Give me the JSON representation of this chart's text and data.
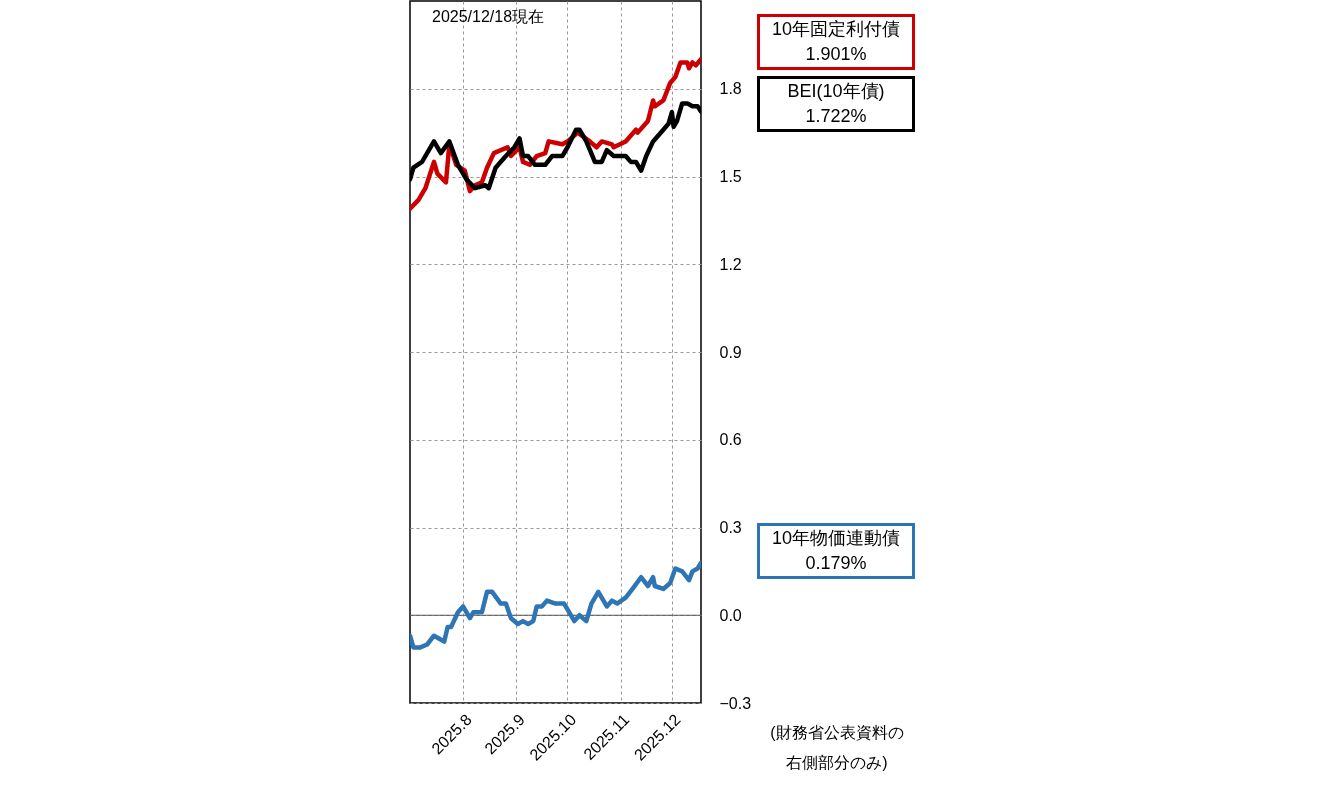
{
  "chart_data": {
    "type": "line",
    "annotations": [
      "2025/12/18現在",
      "1.901%",
      "1.722%",
      "0.179%",
      "(財務省公表資料の右側部分のみ)"
    ],
    "series": [
      {
        "name": "10年固定利付債",
        "color": "#cc0000",
        "x": [
          "2025-07-01",
          "2025-07-06",
          "2025-07-10",
          "2025-07-15",
          "2025-07-17",
          "2025-07-22",
          "2025-07-24",
          "2025-07-28",
          "2025-08-02",
          "2025-08-05",
          "2025-08-08",
          "2025-08-12",
          "2025-08-15",
          "2025-08-19",
          "2025-08-27",
          "2025-08-29",
          "2025-09-03",
          "2025-09-05",
          "2025-09-09",
          "2025-09-13",
          "2025-09-18",
          "2025-09-20",
          "2025-09-28",
          "2025-10-01",
          "2025-10-07",
          "2025-10-14",
          "2025-10-18",
          "2025-10-21",
          "2025-10-27",
          "2025-10-28",
          "2025-11-04",
          "2025-11-10",
          "2025-11-11",
          "2025-11-17",
          "2025-11-20",
          "2025-11-21",
          "2025-11-26",
          "2025-11-30",
          "2025-12-03",
          "2025-12-06",
          "2025-12-10",
          "2025-12-11",
          "2025-12-13",
          "2025-12-15",
          "2025-12-18"
        ],
        "values": [
          1.39,
          1.42,
          1.46,
          1.55,
          1.51,
          1.48,
          1.61,
          1.54,
          1.52,
          1.45,
          1.47,
          1.48,
          1.53,
          1.58,
          1.6,
          1.57,
          1.6,
          1.55,
          1.54,
          1.57,
          1.58,
          1.62,
          1.61,
          1.62,
          1.65,
          1.62,
          1.6,
          1.62,
          1.61,
          1.6,
          1.62,
          1.66,
          1.65,
          1.69,
          1.76,
          1.74,
          1.76,
          1.82,
          1.84,
          1.89,
          1.89,
          1.87,
          1.89,
          1.88,
          1.901
        ]
      },
      {
        "name": "BEI(10年債)",
        "color": "#000000",
        "x": [
          "2025-07-01",
          "2025-07-03",
          "2025-07-08",
          "2025-07-11",
          "2025-07-15",
          "2025-07-19",
          "2025-07-24",
          "2025-07-29",
          "2025-08-03",
          "2025-08-08",
          "2025-08-14",
          "2025-08-16",
          "2025-08-20",
          "2025-08-26",
          "2025-08-31",
          "2025-09-03",
          "2025-09-05",
          "2025-09-08",
          "2025-09-12",
          "2025-09-18",
          "2025-09-22",
          "2025-09-28",
          "2025-10-01",
          "2025-10-06",
          "2025-10-08",
          "2025-10-12",
          "2025-10-17",
          "2025-10-21",
          "2025-10-24",
          "2025-10-28",
          "2025-11-04",
          "2025-11-07",
          "2025-11-10",
          "2025-11-13",
          "2025-11-16",
          "2025-11-20",
          "2025-11-26",
          "2025-11-29",
          "2025-12-01",
          "2025-12-02",
          "2025-12-04",
          "2025-12-07",
          "2025-12-10",
          "2025-12-13",
          "2025-12-16",
          "2025-12-18"
        ],
        "values": [
          1.49,
          1.53,
          1.55,
          1.58,
          1.62,
          1.58,
          1.62,
          1.54,
          1.49,
          1.46,
          1.47,
          1.46,
          1.53,
          1.57,
          1.6,
          1.63,
          1.57,
          1.57,
          1.54,
          1.54,
          1.57,
          1.57,
          1.6,
          1.66,
          1.66,
          1.62,
          1.55,
          1.55,
          1.59,
          1.57,
          1.57,
          1.55,
          1.55,
          1.52,
          1.57,
          1.62,
          1.66,
          1.68,
          1.72,
          1.67,
          1.69,
          1.75,
          1.75,
          1.74,
          1.74,
          1.722
        ]
      },
      {
        "name": "10年物価連動債",
        "color": "#2e75b6",
        "x": [
          "2025-07-01",
          "2025-07-03",
          "2025-07-07",
          "2025-07-11",
          "2025-07-15",
          "2025-07-21",
          "2025-07-23",
          "2025-07-25",
          "2025-07-29",
          "2025-08-01",
          "2025-08-05",
          "2025-08-07",
          "2025-08-12",
          "2025-08-15",
          "2025-08-18",
          "2025-08-23",
          "2025-08-26",
          "2025-08-29",
          "2025-09-02",
          "2025-09-05",
          "2025-09-08",
          "2025-09-11",
          "2025-09-13",
          "2025-09-16",
          "2025-09-19",
          "2025-09-24",
          "2025-09-29",
          "2025-10-01",
          "2025-10-05",
          "2025-10-08",
          "2025-10-12",
          "2025-10-15",
          "2025-10-19",
          "2025-10-24",
          "2025-10-27",
          "2025-10-30",
          "2025-11-04",
          "2025-11-08",
          "2025-11-13",
          "2025-11-17",
          "2025-11-20",
          "2025-11-21",
          "2025-11-26",
          "2025-11-30",
          "2025-12-03",
          "2025-12-07",
          "2025-12-11",
          "2025-12-13",
          "2025-12-16",
          "2025-12-18"
        ],
        "values": [
          -0.07,
          -0.11,
          -0.11,
          -0.1,
          -0.07,
          -0.09,
          -0.04,
          -0.04,
          0.01,
          0.03,
          -0.01,
          0.01,
          0.01,
          0.08,
          0.08,
          0.04,
          0.04,
          -0.01,
          -0.03,
          -0.02,
          -0.03,
          -0.02,
          0.03,
          0.03,
          0.05,
          0.04,
          0.04,
          0.02,
          -0.02,
          0.0,
          -0.02,
          0.04,
          0.08,
          0.03,
          0.05,
          0.04,
          0.06,
          0.09,
          0.13,
          0.1,
          0.13,
          0.1,
          0.09,
          0.11,
          0.16,
          0.15,
          0.12,
          0.15,
          0.16,
          0.179
        ]
      }
    ],
    "xlim": [
      "2025-07-01",
      "2025-12-18"
    ],
    "xticks": [
      {
        "value": "2025-08-01",
        "label": "2025.8"
      },
      {
        "value": "2025-09-01",
        "label": "2025.9"
      },
      {
        "value": "2025-10-01",
        "label": "2025.10"
      },
      {
        "value": "2025-11-01",
        "label": "2025.11"
      },
      {
        "value": "2025-12-01",
        "label": "2025.12"
      }
    ],
    "ylim": [
      -0.3,
      2.1
    ],
    "yticks": [
      {
        "value": -0.3,
        "label": "−0.3"
      },
      {
        "value": 0,
        "label": "0.0"
      },
      0.3,
      0.6,
      0.9,
      1.2,
      1.5,
      1.8
    ],
    "ref_lines": [
      {
        "axis": "y",
        "value": 0,
        "color": "#555555"
      }
    ],
    "grid": true,
    "line_style": "solid",
    "marker": "none"
  }
}
